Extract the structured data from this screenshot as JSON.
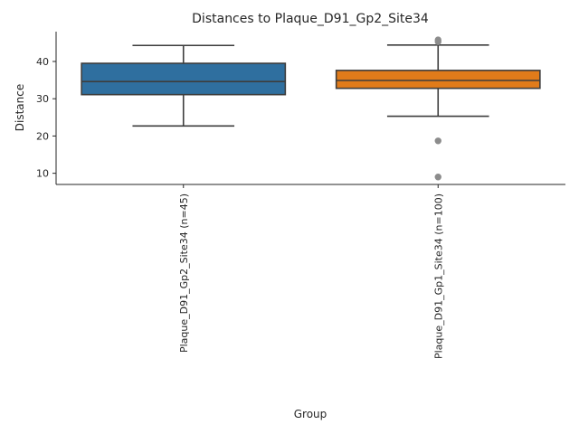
{
  "chart_data": {
    "type": "box",
    "title": "Distances to Plaque_D91_Gp2_Site34",
    "xlabel": "Group",
    "ylabel": "Distance",
    "ylim": [
      7,
      48
    ],
    "yticks": [
      10,
      20,
      30,
      40
    ],
    "grid": false,
    "categories": [
      "Plaque_D91_Gp2_Site34 (n=45)",
      "Plaque_D91_Gp1_Site34 (n=100)"
    ],
    "boxes": [
      {
        "category": "Plaque_D91_Gp2_Site34 (n=45)",
        "color": "#2f6f9f",
        "whisker_low": 22.7,
        "q1": 31.1,
        "median": 34.6,
        "q3": 39.5,
        "whisker_high": 44.3,
        "outliers": []
      },
      {
        "category": "Plaque_D91_Gp1_Site34 (n=100)",
        "color": "#e07b1a",
        "whisker_low": 25.3,
        "q1": 32.8,
        "median": 34.9,
        "q3": 37.6,
        "whisker_high": 44.4,
        "outliers": [
          45.3,
          45.8,
          18.7,
          9.0
        ]
      }
    ]
  }
}
